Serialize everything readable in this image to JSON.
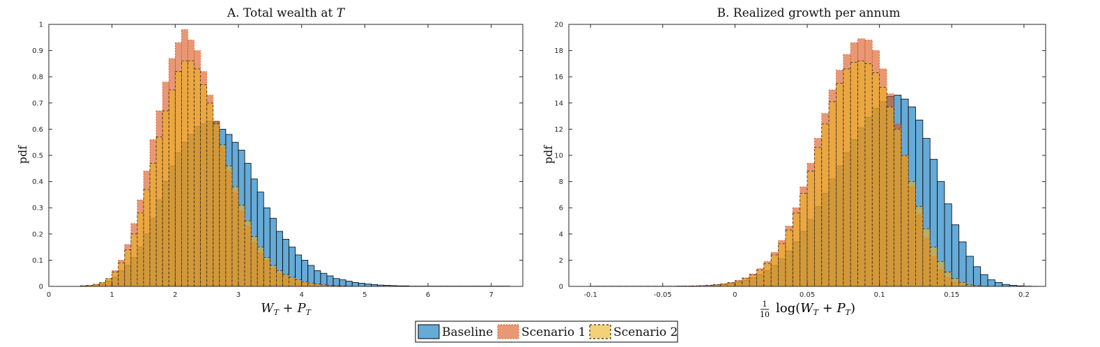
{
  "chart_data": [
    {
      "type": "histogram",
      "title": "A. Total wealth at T",
      "title_prefix": "A. Total wealth at ",
      "title_math": "T",
      "xlabel": "W_T + P_T",
      "ylabel": "pdf",
      "xlim": [
        0,
        7.5
      ],
      "ylim": [
        0,
        1
      ],
      "xticks": [
        "0",
        "1",
        "2",
        "3",
        "4",
        "5",
        "6",
        "7"
      ],
      "yticks": [
        "0",
        "0.1",
        "0.2",
        "0.3",
        "0.4",
        "0.5",
        "0.6",
        "0.7",
        "0.8",
        "0.9",
        "1"
      ],
      "grid": false,
      "series": [
        {
          "name": "Baseline",
          "color": "#0072BD",
          "bin_start": 0.5,
          "bin_width": 0.1,
          "values": [
            0.002,
            0.003,
            0.005,
            0.01,
            0.02,
            0.035,
            0.06,
            0.08,
            0.11,
            0.15,
            0.2,
            0.26,
            0.33,
            0.4,
            0.46,
            0.51,
            0.55,
            0.58,
            0.61,
            0.62,
            0.63,
            0.63,
            0.6,
            0.58,
            0.55,
            0.52,
            0.47,
            0.41,
            0.36,
            0.3,
            0.26,
            0.21,
            0.18,
            0.15,
            0.12,
            0.1,
            0.08,
            0.06,
            0.05,
            0.04,
            0.03,
            0.025,
            0.02,
            0.015,
            0.012,
            0.009,
            0.007,
            0.005,
            0.004,
            0.003,
            0.002,
            0.002,
            0.001,
            0.001,
            0.001,
            0.001,
            0.001,
            0.001,
            0.001,
            0.001,
            0.001,
            0.001,
            0.001,
            0.001,
            0.001,
            0.001,
            0.001,
            0.001
          ]
        },
        {
          "name": "Scenario 1",
          "color": "#D95319",
          "bin_start": 0.5,
          "bin_width": 0.1,
          "values": [
            0.002,
            0.004,
            0.008,
            0.015,
            0.03,
            0.06,
            0.1,
            0.16,
            0.24,
            0.33,
            0.44,
            0.56,
            0.67,
            0.78,
            0.87,
            0.93,
            0.98,
            0.94,
            0.9,
            0.82,
            0.73,
            0.63,
            0.53,
            0.44,
            0.36,
            0.29,
            0.23,
            0.17,
            0.13,
            0.1,
            0.07,
            0.05,
            0.04,
            0.03,
            0.02,
            0.015,
            0.01,
            0.008,
            0.006,
            0.004,
            0.003,
            0.002,
            0.001
          ]
        },
        {
          "name": "Scenario 2",
          "color": "#EDB120",
          "bin_start": 0.5,
          "bin_width": 0.1,
          "values": [
            0.002,
            0.004,
            0.008,
            0.015,
            0.03,
            0.055,
            0.09,
            0.14,
            0.2,
            0.28,
            0.37,
            0.47,
            0.57,
            0.67,
            0.75,
            0.82,
            0.86,
            0.86,
            0.83,
            0.77,
            0.7,
            0.62,
            0.54,
            0.46,
            0.38,
            0.31,
            0.25,
            0.19,
            0.15,
            0.11,
            0.08,
            0.06,
            0.045,
            0.035,
            0.025,
            0.018,
            0.013,
            0.009,
            0.006,
            0.004,
            0.003,
            0.002,
            0.001
          ]
        }
      ]
    },
    {
      "type": "histogram",
      "title": "B. Realized growth per annum",
      "xlabel": "1/10 log(W_T + P_T)",
      "ylabel": "pdf",
      "xlim": [
        -0.115,
        0.215
      ],
      "ylim": [
        0,
        20
      ],
      "xticks": [
        "-0.1",
        "-0.05",
        "0",
        "0.05",
        "0.1",
        "0.15",
        "0.2"
      ],
      "yticks": [
        "0",
        "2",
        "4",
        "6",
        "8",
        "10",
        "12",
        "14",
        "16",
        "18",
        "20"
      ],
      "grid": false,
      "series": [
        {
          "name": "Baseline",
          "color": "#0072BD",
          "bin_start": -0.1,
          "bin_width": 0.005,
          "values": [
            0.01,
            0.01,
            0.01,
            0.01,
            0.01,
            0.01,
            0.01,
            0.01,
            0.01,
            0.01,
            0.01,
            0.01,
            0.02,
            0.02,
            0.03,
            0.05,
            0.07,
            0.1,
            0.15,
            0.22,
            0.32,
            0.45,
            0.65,
            0.9,
            1.2,
            1.6,
            2.1,
            2.7,
            3.4,
            4.2,
            5.1,
            6.1,
            7.1,
            8.2,
            9.2,
            10.2,
            11.2,
            12.1,
            12.9,
            13.6,
            14.1,
            14.5,
            14.6,
            14.3,
            13.7,
            12.7,
            11.3,
            9.7,
            8.0,
            6.3,
            4.7,
            3.4,
            2.3,
            1.5,
            0.9,
            0.5,
            0.3,
            0.15,
            0.08,
            0.04,
            0.02,
            0.01
          ]
        },
        {
          "name": "Scenario 1",
          "color": "#D95319",
          "bin_start": -0.1,
          "bin_width": 0.005,
          "values": [
            0.01,
            0.01,
            0.01,
            0.01,
            0.01,
            0.01,
            0.01,
            0.01,
            0.01,
            0.01,
            0.01,
            0.01,
            0.02,
            0.03,
            0.04,
            0.06,
            0.09,
            0.14,
            0.2,
            0.3,
            0.45,
            0.65,
            0.95,
            1.35,
            1.9,
            2.6,
            3.5,
            4.6,
            6.0,
            7.6,
            9.4,
            11.3,
            13.2,
            15.0,
            16.5,
            17.7,
            18.6,
            18.9,
            18.8,
            18.0,
            16.6,
            14.7,
            12.4,
            10.0,
            7.6,
            5.5,
            3.7,
            2.3,
            1.3,
            0.7,
            0.35,
            0.15,
            0.07,
            0.03,
            0.01
          ]
        },
        {
          "name": "Scenario 2",
          "color": "#EDB120",
          "bin_start": -0.1,
          "bin_width": 0.005,
          "values": [
            0.01,
            0.01,
            0.01,
            0.01,
            0.01,
            0.01,
            0.01,
            0.01,
            0.01,
            0.01,
            0.01,
            0.01,
            0.02,
            0.03,
            0.04,
            0.06,
            0.09,
            0.13,
            0.19,
            0.28,
            0.42,
            0.6,
            0.88,
            1.25,
            1.75,
            2.4,
            3.25,
            4.3,
            5.6,
            7.1,
            8.8,
            10.6,
            12.4,
            14.1,
            15.5,
            16.6,
            17.1,
            17.2,
            17.0,
            16.3,
            15.2,
            13.7,
            12.0,
            10.0,
            8.0,
            6.1,
            4.4,
            3.0,
            1.9,
            1.1,
            0.6,
            0.3,
            0.14,
            0.06,
            0.02,
            0.01
          ]
        }
      ]
    }
  ],
  "legend": {
    "entries": [
      "Baseline",
      "Scenario 1",
      "Scenario 2"
    ],
    "placement": "bottom-center"
  }
}
